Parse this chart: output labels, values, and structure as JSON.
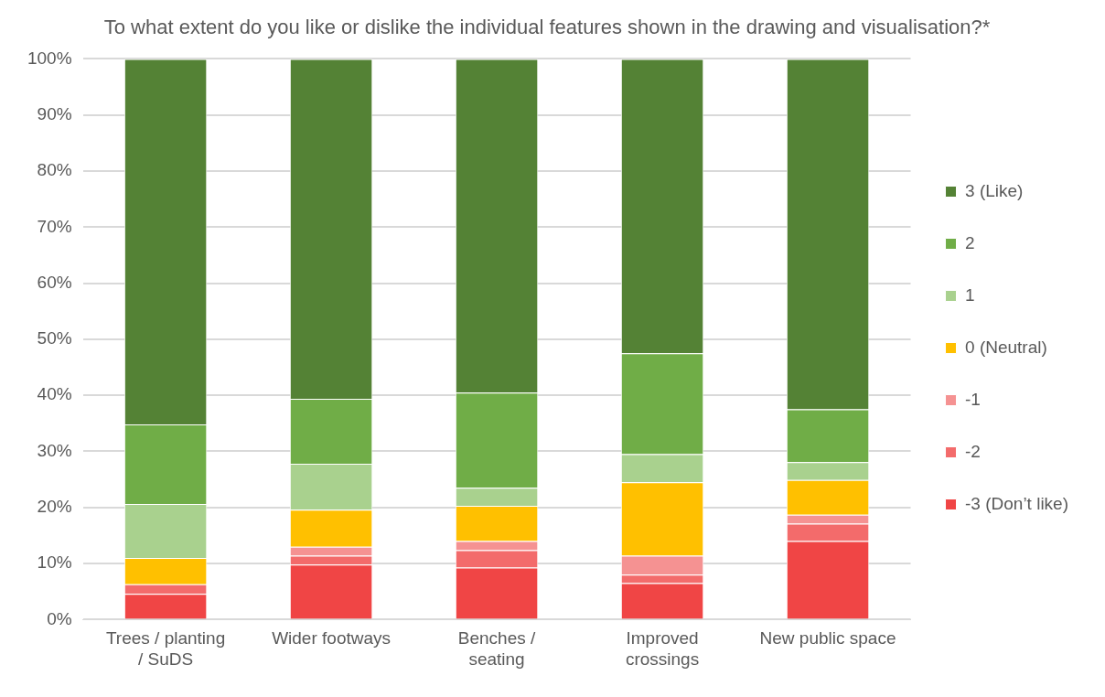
{
  "chart_data": {
    "type": "bar",
    "stacked": true,
    "title": "To what extent do you like or dislike the individual features shown in the drawing and visualisation?*",
    "categories": [
      "Trees / planting / SuDS",
      "Wider footways",
      "Benches / seating",
      "Improved crossings",
      "New public space"
    ],
    "series": [
      {
        "name": "-3 (Don’t like)",
        "color": "#f04545",
        "values": [
          4.6,
          9.8,
          9.3,
          6.5,
          14.0
        ]
      },
      {
        "name": "-2",
        "color": "#f36b6b",
        "values": [
          1.7,
          1.6,
          3.1,
          1.5,
          3.1
        ]
      },
      {
        "name": "-1",
        "color": "#f59292",
        "values": [
          0,
          1.6,
          1.6,
          3.4,
          1.6
        ]
      },
      {
        "name": "0 (Neutral)",
        "color": "#ffc000",
        "values": [
          4.7,
          6.6,
          6.3,
          13.1,
          6.2
        ]
      },
      {
        "name": "1",
        "color": "#a9d18e",
        "values": [
          9.6,
          8.2,
          3.2,
          5.0,
          3.2
        ]
      },
      {
        "name": "2",
        "color": "#70ad47",
        "values": [
          14.2,
          11.6,
          17.0,
          18.0,
          9.4
        ]
      },
      {
        "name": "3 (Like)",
        "color": "#548235",
        "values": [
          65.2,
          60.6,
          59.5,
          52.5,
          62.5
        ]
      }
    ],
    "ylim": [
      0,
      100
    ],
    "yticks": [
      {
        "value": 0,
        "label": "0%"
      },
      {
        "value": 10,
        "label": "10%"
      },
      {
        "value": 20,
        "label": "20%"
      },
      {
        "value": 30,
        "label": "30%"
      },
      {
        "value": 40,
        "label": "40%"
      },
      {
        "value": 50,
        "label": "50%"
      },
      {
        "value": 60,
        "label": "60%"
      },
      {
        "value": 70,
        "label": "70%"
      },
      {
        "value": 80,
        "label": "80%"
      },
      {
        "value": 90,
        "label": "90%"
      },
      {
        "value": 100,
        "label": "100%"
      }
    ],
    "grid": "y",
    "legend": "right"
  }
}
